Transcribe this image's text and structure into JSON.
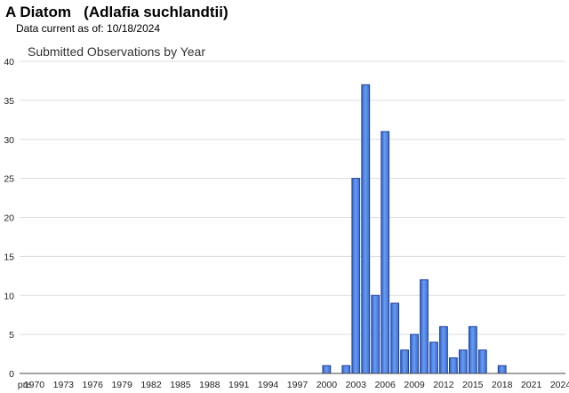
{
  "header": {
    "title": "A Diatom   (Adlafia suchlandtii)",
    "data_current": "Data current as of: 10/18/2024"
  },
  "chart_data": {
    "type": "bar",
    "title": "Submitted Observations by Year",
    "xlabel": "",
    "ylabel": "",
    "categories": [
      "pre",
      "1970",
      "1971",
      "1972",
      "1973",
      "1974",
      "1975",
      "1976",
      "1977",
      "1978",
      "1979",
      "1980",
      "1981",
      "1982",
      "1983",
      "1984",
      "1985",
      "1986",
      "1987",
      "1988",
      "1989",
      "1990",
      "1991",
      "1992",
      "1993",
      "1994",
      "1995",
      "1996",
      "1997",
      "1998",
      "1999",
      "2000",
      "2001",
      "2002",
      "2003",
      "2004",
      "2005",
      "2006",
      "2007",
      "2008",
      "2009",
      "2010",
      "2011",
      "2012",
      "2013",
      "2014",
      "2015",
      "2016",
      "2017",
      "2018",
      "2019",
      "2020",
      "2021",
      "2022",
      "2023",
      "2024"
    ],
    "values": [
      0,
      0,
      0,
      0,
      0,
      0,
      0,
      0,
      0,
      0,
      0,
      0,
      0,
      0,
      0,
      0,
      0,
      0,
      0,
      0,
      0,
      0,
      0,
      0,
      0,
      0,
      0,
      0,
      0,
      0,
      0,
      1,
      0,
      1,
      25,
      37,
      10,
      31,
      9,
      3,
      5,
      12,
      4,
      6,
      2,
      3,
      6,
      3,
      0,
      1,
      0,
      0,
      0,
      0,
      0,
      0
    ],
    "x_tick_labels": [
      "pre",
      "1970",
      "1973",
      "1976",
      "1979",
      "1982",
      "1985",
      "1988",
      "1991",
      "1994",
      "1997",
      "2000",
      "2003",
      "2006",
      "2009",
      "2012",
      "2015",
      "2018",
      "2021",
      "2024"
    ],
    "y_ticks": [
      0,
      5,
      10,
      15,
      20,
      25,
      30,
      35,
      40
    ],
    "ylim": [
      0,
      40
    ],
    "grid": true,
    "bar_color": "#4f86e0",
    "bar_edge_color": "#1c3f99"
  }
}
